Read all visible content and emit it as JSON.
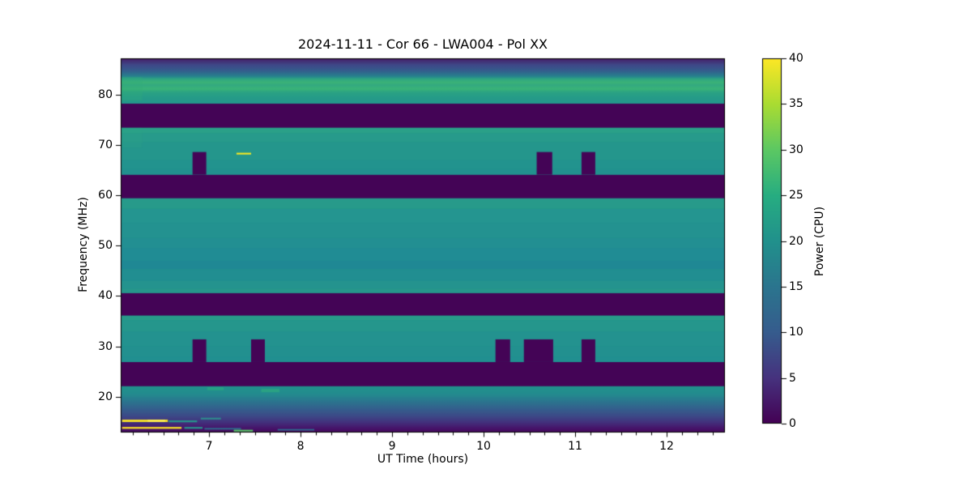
{
  "header": {
    "date": "2024-11-11",
    "source": "Cor 66",
    "station": "LWA004",
    "polarization": "XX"
  },
  "chart_data": {
    "type": "heatmap",
    "title": "2024-11-11 - Cor 66 - LWA004 - Pol XX",
    "xlabel": "UT Time (hours)",
    "ylabel": "Frequency (MHz)",
    "grid": false,
    "x_range": [
      6.035,
      12.637
    ],
    "y_range": [
      12.9,
      87.2
    ],
    "x_major_ticks": [
      7,
      8,
      9,
      10,
      11,
      12
    ],
    "x_minor_step": 0.166667,
    "y_major_ticks": [
      20,
      30,
      40,
      50,
      60,
      70,
      80
    ],
    "flagged_value": 0,
    "flagged_color": "#440456",
    "bands": [
      {
        "name": "78-87MHz-gradient",
        "f_top": 87.2,
        "f_bottom": 78.2,
        "approx_power_cpu": [
          0,
          27
        ],
        "gradient": [
          [
            87.2,
            "#440154"
          ],
          [
            86.8,
            "#432c71"
          ],
          [
            85.9,
            "#3f4788"
          ],
          [
            84.9,
            "#365a8c"
          ],
          [
            84.0,
            "#2b748e"
          ],
          [
            83.5,
            "#27898c"
          ],
          [
            83.1,
            "#2fa683"
          ],
          [
            82.4,
            "#3bb277"
          ],
          [
            81.9,
            "#33a981"
          ],
          [
            81.1,
            "#3ab377"
          ],
          [
            80.5,
            "#2ba383"
          ],
          [
            79.5,
            "#269c88"
          ],
          [
            78.2,
            "#23968c"
          ]
        ]
      },
      {
        "name": "rfi-gap-73-78MHz",
        "f_top": 78.2,
        "f_bottom": 73.4,
        "flagged": true,
        "approx_power_cpu": 0
      },
      {
        "name": "band-64-73MHz",
        "f_top": 73.4,
        "f_bottom": 64.1,
        "approx_power_cpu": 21,
        "base_color": "#24958c",
        "stripes": [
          [
            73.4,
            72.3,
            "#2aa088"
          ],
          [
            72.3,
            70.5,
            "#279a8b"
          ],
          [
            70.5,
            67.0,
            "#24968c"
          ],
          [
            67.0,
            65.3,
            "#22938e"
          ],
          [
            65.3,
            64.1,
            "#21918e"
          ]
        ]
      },
      {
        "name": "rfi-gap-59-64MHz",
        "f_top": 64.1,
        "f_bottom": 59.4,
        "flagged": true,
        "approx_power_cpu": 0
      },
      {
        "name": "band-41-59MHz",
        "f_top": 59.4,
        "f_bottom": 40.6,
        "approx_power_cpu": 20,
        "base_color": "#23938e",
        "stripes": [
          [
            59.4,
            57.3,
            "#279a8a"
          ],
          [
            57.3,
            54.5,
            "#249590"
          ],
          [
            54.5,
            51.5,
            "#239290"
          ],
          [
            51.5,
            49.5,
            "#228f92"
          ],
          [
            49.5,
            47.0,
            "#208c94"
          ],
          [
            47.0,
            45.3,
            "#1f8894"
          ],
          [
            45.3,
            43.0,
            "#218e91"
          ],
          [
            43.0,
            41.5,
            "#24938e"
          ],
          [
            41.5,
            40.6,
            "#26968b"
          ]
        ]
      },
      {
        "name": "rfi-gap-36-41MHz",
        "f_top": 40.6,
        "f_bottom": 36.1,
        "flagged": true,
        "approx_power_cpu": 0
      },
      {
        "name": "band-27-36MHz",
        "f_top": 36.1,
        "f_bottom": 26.9,
        "approx_power_cpu": 21,
        "base_color": "#24948d",
        "stripes": [
          [
            36.1,
            35.2,
            "#289a89"
          ],
          [
            35.2,
            33.0,
            "#25968c"
          ],
          [
            33.0,
            30.0,
            "#23928f"
          ],
          [
            30.0,
            28.0,
            "#22908f"
          ],
          [
            28.0,
            26.9,
            "#218f90"
          ]
        ]
      },
      {
        "name": "rfi-gap-22-27MHz",
        "f_top": 26.9,
        "f_bottom": 22.1,
        "flagged": true,
        "approx_power_cpu": 0
      },
      {
        "name": "13-22MHz-gradient",
        "f_top": 22.1,
        "f_bottom": 12.9,
        "approx_power_cpu": [
          2,
          20
        ],
        "gradient": [
          [
            22.1,
            "#21918c"
          ],
          [
            20.6,
            "#238c8e"
          ],
          [
            19.2,
            "#2a778e"
          ],
          [
            17.8,
            "#33628d"
          ],
          [
            16.2,
            "#3c4a87"
          ],
          [
            14.9,
            "#43307c"
          ],
          [
            13.8,
            "#46156b"
          ],
          [
            12.9,
            "#45075b"
          ]
        ]
      }
    ],
    "dropouts": [
      {
        "band": "band-64-73MHz",
        "f_top": 68.6,
        "f_bottom": 64.1,
        "intervals_ut_hours": [
          [
            6.82,
            6.97
          ],
          [
            10.58,
            10.75
          ],
          [
            11.07,
            11.22
          ]
        ]
      },
      {
        "band": "band-27-36MHz",
        "f_top": 31.4,
        "f_bottom": 26.9,
        "intervals_ut_hours": [
          [
            6.82,
            6.97
          ],
          [
            7.46,
            7.61
          ],
          [
            10.13,
            10.29
          ],
          [
            10.44,
            10.76
          ],
          [
            11.07,
            11.22
          ]
        ]
      }
    ],
    "streaks": [
      {
        "t0": 7.3,
        "t1": 7.46,
        "f0": 68.45,
        "f1": 68.1,
        "color": "#f0e626"
      },
      {
        "t0": 6.05,
        "t1": 6.55,
        "f0": 15.45,
        "f1": 15.0,
        "color": "#fde725"
      },
      {
        "t0": 6.33,
        "t1": 6.52,
        "f0": 15.45,
        "f1": 15.0,
        "color": "#ffef4d"
      },
      {
        "t0": 6.56,
        "t1": 6.87,
        "f0": 15.3,
        "f1": 14.95,
        "color": "#27968c"
      },
      {
        "t0": 6.91,
        "t1": 7.13,
        "f0": 15.85,
        "f1": 15.5,
        "color": "#2e8b8e"
      },
      {
        "t0": 6.05,
        "t1": 6.7,
        "f0": 14.0,
        "f1": 13.65,
        "color": "#fde725"
      },
      {
        "t0": 6.73,
        "t1": 6.93,
        "f0": 14.0,
        "f1": 13.65,
        "color": "#27968c"
      },
      {
        "t0": 6.95,
        "t1": 7.35,
        "f0": 13.8,
        "f1": 13.5,
        "color": "#2d6f8e"
      },
      {
        "t0": 7.27,
        "t1": 7.48,
        "f0": 13.45,
        "f1": 13.1,
        "color": "#58c667"
      },
      {
        "t0": 7.75,
        "t1": 8.15,
        "f0": 13.6,
        "f1": 13.3,
        "color": "#2d6c8e"
      },
      {
        "t0": 6.98,
        "t1": 7.16,
        "f0": 21.9,
        "f1": 21.3,
        "color": "#27a185"
      },
      {
        "t0": 7.57,
        "t1": 7.77,
        "f0": 21.6,
        "f1": 20.9,
        "color": "#2aa183"
      },
      {
        "t0": 6.04,
        "t1": 6.27,
        "f0": 83.5,
        "f1": 78.8,
        "color": "#33ad7c",
        "alpha": 0.3
      },
      {
        "t0": 6.04,
        "t1": 6.27,
        "f0": 73.4,
        "f1": 69.5,
        "color": "#2ca583",
        "alpha": 0.25
      }
    ],
    "colorbar": {
      "label": "Power (CPU)",
      "min": 0,
      "max": 40,
      "ticks": [
        0,
        5,
        10,
        15,
        20,
        25,
        30,
        35,
        40
      ],
      "colormap": "viridis",
      "gradient_stops": [
        [
          0,
          "#440154"
        ],
        [
          5,
          "#46327e"
        ],
        [
          10,
          "#365c8d"
        ],
        [
          15,
          "#2b758e"
        ],
        [
          20,
          "#21918c"
        ],
        [
          25,
          "#27ad81"
        ],
        [
          30,
          "#5cc863"
        ],
        [
          35,
          "#aadc32"
        ],
        [
          40,
          "#fde725"
        ]
      ]
    }
  }
}
